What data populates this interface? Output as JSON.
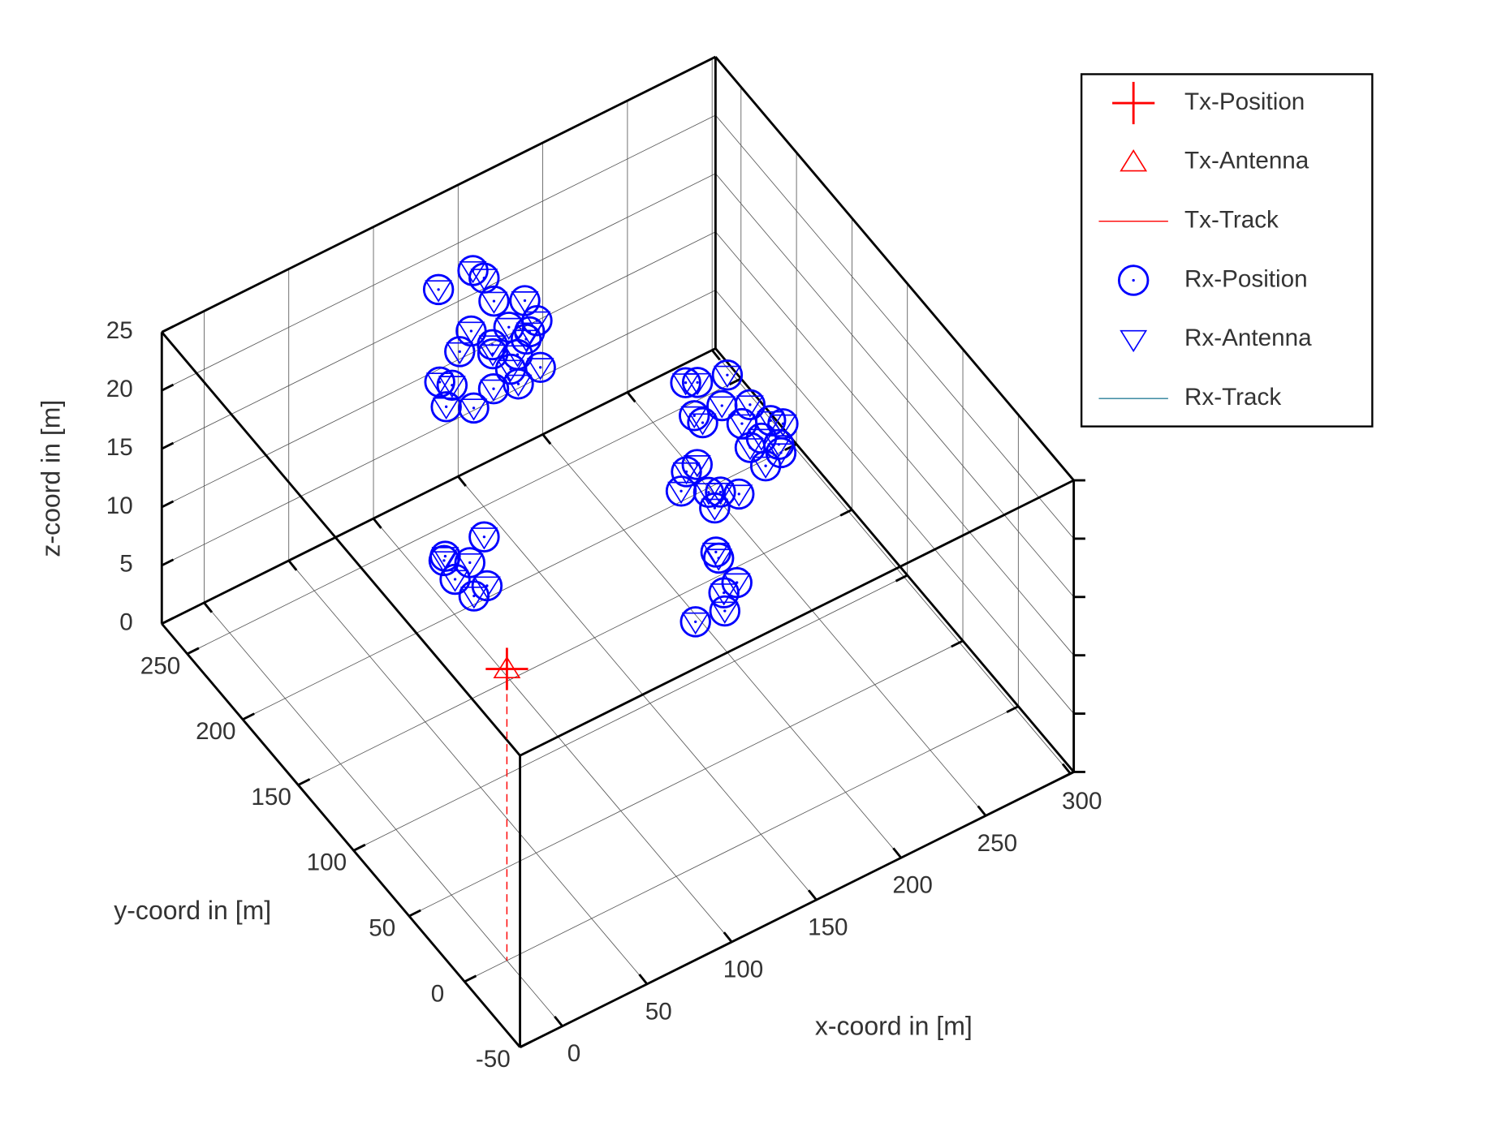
{
  "chart_data": {
    "type": "scatter3d",
    "xlabel": "x-coord in [m]",
    "ylabel": "y-coord in [m]",
    "zlabel": "z-coord in [m]",
    "xlim": [
      -25,
      302
    ],
    "ylim": [
      -50,
      273
    ],
    "zlim": [
      0,
      25
    ],
    "xticks": [
      0,
      50,
      100,
      150,
      200,
      250,
      300
    ],
    "yticks": [
      -50,
      0,
      50,
      100,
      150,
      200,
      250
    ],
    "zticks": [
      0,
      5,
      10,
      15,
      20,
      25
    ],
    "grid": true,
    "legend": "northeast-outside",
    "series": [
      {
        "name": "Tx-Position",
        "color": "#ff0000",
        "marker": "plus",
        "x": [
          0
        ],
        "y": [
          0
        ],
        "z": [
          25
        ]
      },
      {
        "name": "Tx-Antenna",
        "color": "#ff0000",
        "marker": "triangle-up"
      },
      {
        "name": "Tx-Track",
        "color": "#ff0000",
        "marker": "line"
      },
      {
        "name": "Rx-Position",
        "color": "#0000ff",
        "marker": "circle",
        "x": [
          105,
          126,
          128,
          124,
          137,
          135,
          104,
          121,
          128,
          124,
          92,
          108,
          105,
          115,
          107,
          120,
          73,
          77,
          93,
          105,
          67,
          78,
          37,
          14,
          12,
          22,
          10,
          21,
          12,
          175,
          180,
          195,
          182,
          167,
          168,
          194,
          184,
          197,
          201,
          187,
          192,
          179,
          179,
          190,
          151,
          144,
          135,
          146,
          151,
          158,
          143,
          128,
          127,
          126,
          117,
          111,
          95
        ],
        "y": [
          222,
          223,
          216,
          201,
          193,
          179,
          191,
          183,
          175,
          172,
          183,
          178,
          173,
          166,
          160,
          153,
          172,
          167,
          154,
          150,
          157,
          149,
          77,
          77,
          75,
          67,
          62,
          50,
          48,
          106,
          103,
          99,
          84,
          86,
          80,
          77,
          69,
          63,
          58,
          56,
          48,
          54,
          40,
          43,
          59,
          58,
          49,
          41,
          38,
          32,
          31,
          7,
          3,
          -15,
          -17,
          -27,
          -25
        ],
        "z": [
          25,
          25,
          25,
          25,
          25,
          25,
          25,
          25,
          25,
          25,
          25,
          25,
          25,
          25,
          25,
          25,
          25,
          25,
          25,
          25,
          25,
          25,
          25,
          25,
          25,
          25,
          25,
          25,
          25,
          25,
          25,
          25,
          25,
          25,
          25,
          25,
          25,
          25,
          25,
          25,
          25,
          25,
          25,
          25,
          25,
          25,
          25,
          25,
          25,
          25,
          25,
          25,
          25,
          25,
          25,
          25,
          25
        ]
      },
      {
        "name": "Rx-Antenna",
        "color": "#0000ff",
        "marker": "triangle-down"
      },
      {
        "name": "Rx-Track",
        "color": "#2a7f9a",
        "marker": "line"
      }
    ]
  }
}
